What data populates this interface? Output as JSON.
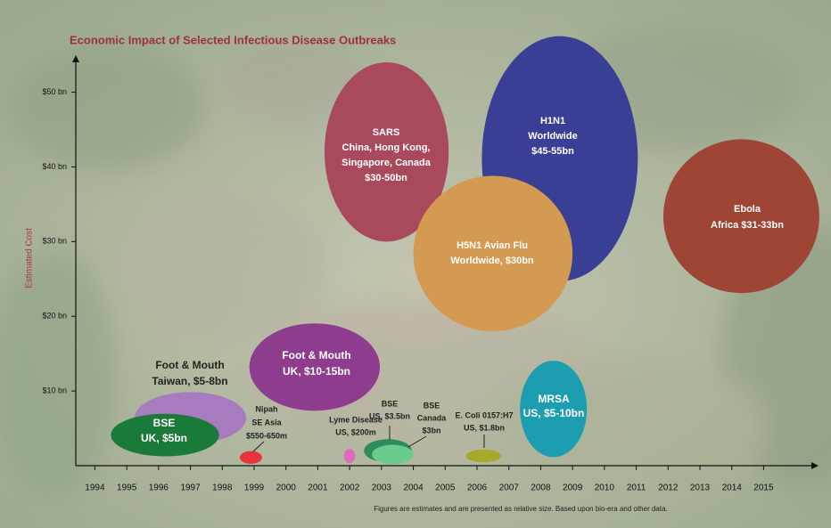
{
  "chart_data": {
    "type": "bubble",
    "title": "Economic Impact of Selected Infectious Disease Outbreaks",
    "y_label": "Estimated Cost",
    "note": "Figures are estimates and are presented as relative size. Based upon bio-era and other data.",
    "xlim": [
      1993.4,
      2016.5
    ],
    "ylim": [
      0,
      54
    ],
    "xticks": [
      1994,
      1995,
      1996,
      1997,
      1998,
      1999,
      2000,
      2001,
      2002,
      2003,
      2004,
      2005,
      2006,
      2007,
      2008,
      2009,
      2010,
      2011,
      2012,
      2013,
      2014,
      2015
    ],
    "yticks": [
      {
        "value": 10,
        "label": "$10 bn"
      },
      {
        "value": 20,
        "label": "$20 bn"
      },
      {
        "value": 30,
        "label": "$30 bn"
      },
      {
        "value": 40,
        "label": "$40 bn"
      },
      {
        "value": 50,
        "label": "$50 bn"
      }
    ],
    "points": [
      {
        "label": [
          "Foot & Mouth",
          "Taiwan, $5-8bn"
        ],
        "color": "#a77bbd",
        "x": 1997.0,
        "y": 6.4,
        "width": 3.5,
        "height": 6.9
      },
      {
        "label": [
          "BSE",
          "UK, $5bn"
        ],
        "color": "#1a7a3a",
        "x": 1996.2,
        "y": 4.1,
        "width": 3.4,
        "height": 5.7
      },
      {
        "label": [
          "Foot & Mouth",
          "UK, $10-15bn"
        ],
        "color": "#8e3c8e",
        "x": 2000.9,
        "y": 13.2,
        "width": 4.1,
        "height": 11.7
      },
      {
        "label": [
          "Nipah",
          "SE Asia",
          "$550-650m"
        ],
        "color": "#e8323c",
        "x": 1998.9,
        "y": 1.1,
        "width": 0.7,
        "height": 1.7
      },
      {
        "label": [
          "Lyme Disease",
          "US, $200m"
        ],
        "color": "#e06ac0",
        "x": 2002.0,
        "y": 1.3,
        "width": 0.35,
        "height": 1.9
      },
      {
        "label": [
          "BSE",
          "US, $3.5bn"
        ],
        "color": "#2e8b5a",
        "x": 2003.2,
        "y": 2.0,
        "width": 1.5,
        "height": 3.1
      },
      {
        "label": [
          "BSE",
          "Canada",
          "$3bn"
        ],
        "color": "#6acb8f",
        "x": 2003.35,
        "y": 1.5,
        "width": 1.3,
        "height": 2.6
      },
      {
        "label": [
          "E. Coli 0157:H7",
          "US, $1.8bn"
        ],
        "color": "#a8a82a",
        "x": 2006.2,
        "y": 1.3,
        "width": 1.1,
        "height": 1.7
      },
      {
        "label": [
          "SARS",
          "China, Hong Kong,",
          "Singapore, Canada",
          "$30-50bn"
        ],
        "color": "#a84a5c",
        "x": 2003.16,
        "y": 42.0,
        "width": 3.9,
        "height": 24.0
      },
      {
        "label": [
          "H1N1",
          "Worldwide",
          "$45-55bn"
        ],
        "color": "#3a3f96",
        "x": 2008.6,
        "y": 41.1,
        "width": 4.9,
        "height": 32.8
      },
      {
        "label": [
          "H5N1 Avian Flu",
          "Worldwide, $30bn"
        ],
        "color": "#d49a52",
        "x": 2006.5,
        "y": 28.4,
        "width": 5.0,
        "height": 20.8
      },
      {
        "label": [
          "MRSA",
          "US, $5-10bn"
        ],
        "color": "#1d9db0",
        "x": 2008.4,
        "y": 7.6,
        "width": 2.1,
        "height": 12.9
      },
      {
        "label": [
          "Ebola",
          "Africa $31-33bn"
        ],
        "color": "#9e4535",
        "x": 2014.3,
        "y": 33.4,
        "width": 4.9,
        "height": 20.6
      }
    ]
  }
}
